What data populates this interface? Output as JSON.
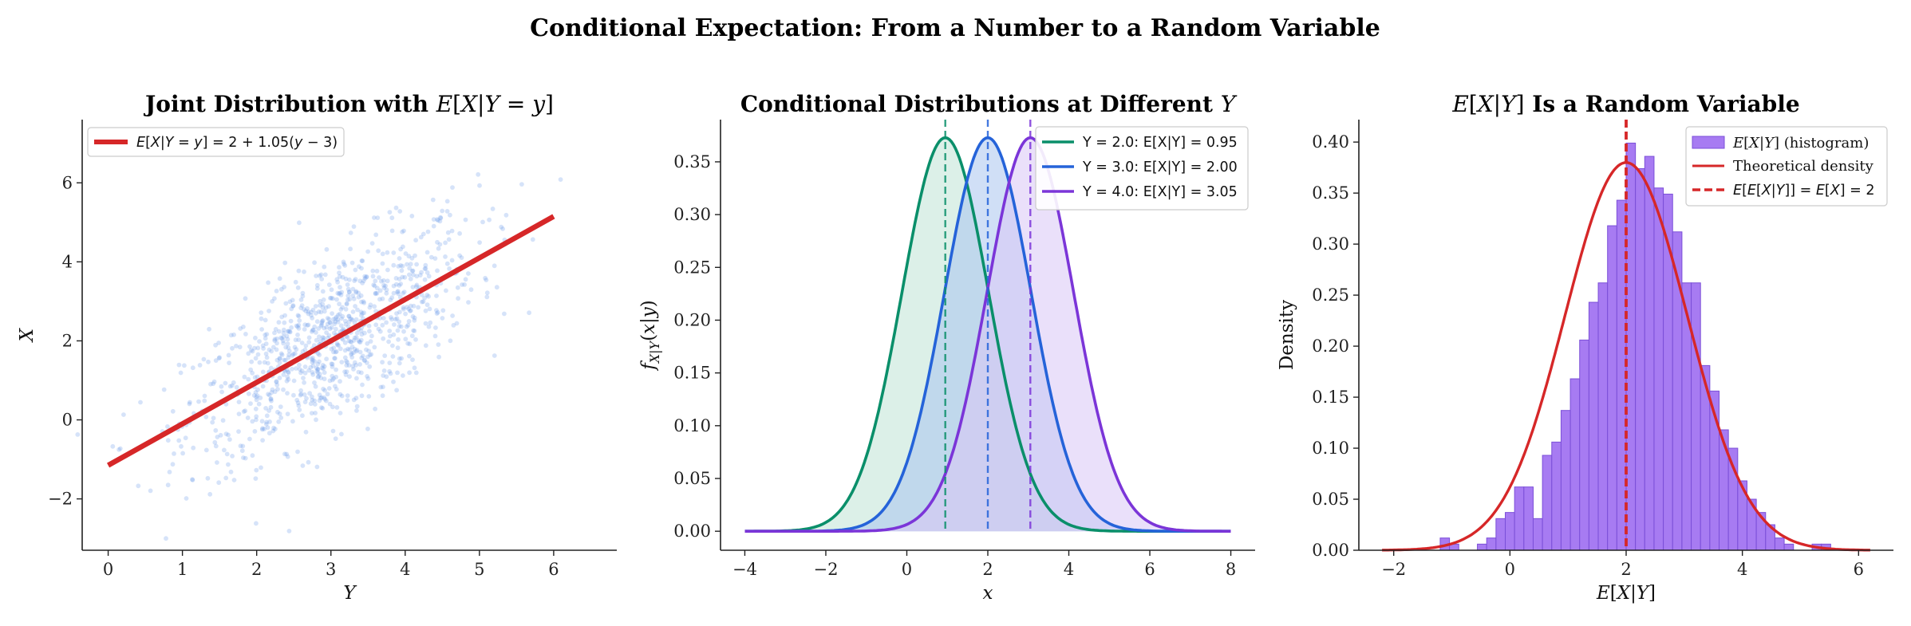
{
  "suptitle": "Conditional Expectation: From a Number to a Random Variable",
  "chart_data": [
    {
      "type": "scatter",
      "title": "Joint Distribution with E[X|Y = y]",
      "xlabel": "Y",
      "ylabel": "X",
      "xlim": [
        -0.35,
        6.85
      ],
      "ylim": [
        -3.3,
        7.6
      ],
      "xticks": [
        0,
        1,
        2,
        3,
        4,
        5,
        6
      ],
      "xtick_labels": [
        "0",
        "1",
        "2",
        "3",
        "4",
        "5",
        "6"
      ],
      "yticks": [
        -2,
        0,
        2,
        4,
        6
      ],
      "ytick_labels": [
        "−2",
        "0",
        "2",
        "4",
        "6"
      ],
      "points_color": "#6d9ae8",
      "line_color": "#d62728",
      "n_points": 1000,
      "regression_line": {
        "label": "E[X|Y = y] = 2 + 1.05(y − 3)",
        "intercept": 2,
        "slope": 1.05,
        "center": 3,
        "x_range": [
          0,
          6
        ]
      },
      "legend_position": "upper left",
      "grid": false
    },
    {
      "type": "area",
      "title": "Conditional Distributions at Different Y",
      "xlabel": "x",
      "ylabel": "f_{X|Y}(x|y)",
      "xlim": [
        -4.6,
        8.6
      ],
      "ylim": [
        -0.018,
        0.39
      ],
      "xticks": [
        -4,
        -2,
        0,
        2,
        4,
        6,
        8
      ],
      "xtick_labels": [
        "−4",
        "−2",
        "0",
        "2",
        "4",
        "6",
        "8"
      ],
      "yticks": [
        0,
        0.05,
        0.1,
        0.15,
        0.2,
        0.25,
        0.3,
        0.35
      ],
      "ytick_labels": [
        "0.00",
        "0.05",
        "0.10",
        "0.15",
        "0.20",
        "0.25",
        "0.30",
        "0.35"
      ],
      "x_range": [
        -4,
        8
      ],
      "sigma": 1.07,
      "series": [
        {
          "name": "Y = 2.0: E[X|Y] = 0.95",
          "mean": 0.95,
          "color": "#0a8f6a",
          "fill": "#bfe3d6"
        },
        {
          "name": "Y = 3.0: E[X|Y] = 2.00",
          "mean": 2.0,
          "color": "#2563d9",
          "fill": "#a9c4ef"
        },
        {
          "name": "Y = 4.0: E[X|Y] = 3.05",
          "mean": 3.05,
          "color": "#7b35d8",
          "fill": "#d9c7f5"
        }
      ],
      "legend_position": "upper right",
      "grid": false
    },
    {
      "type": "bar",
      "title": "E[X|Y] Is a Random Variable",
      "xlabel": "E[X|Y]",
      "ylabel": "Density",
      "xlim": [
        -2.6,
        6.6
      ],
      "ylim": [
        0,
        0.422
      ],
      "xticks": [
        -2,
        0,
        2,
        4,
        6
      ],
      "xtick_labels": [
        "−2",
        "0",
        "2",
        "4",
        "6"
      ],
      "yticks": [
        0,
        0.05,
        0.1,
        0.15,
        0.2,
        0.25,
        0.3,
        0.35,
        0.4
      ],
      "ytick_labels": [
        "0.00",
        "0.05",
        "0.10",
        "0.15",
        "0.20",
        "0.25",
        "0.30",
        "0.35",
        "0.40"
      ],
      "hist_bin_left": -1.2,
      "hist_bin_width": 0.16,
      "hist_values": [
        0.012,
        0.006,
        0,
        0,
        0.006,
        0.012,
        0.031,
        0.037,
        0.062,
        0.062,
        0.031,
        0.093,
        0.106,
        0.137,
        0.168,
        0.206,
        0.243,
        0.262,
        0.318,
        0.343,
        0.399,
        0.374,
        0.386,
        0.355,
        0.349,
        0.312,
        0.262,
        0.262,
        0.181,
        0.156,
        0.118,
        0.1,
        0.068,
        0.05,
        0.037,
        0.025,
        0.012,
        0.006,
        0,
        0,
        0.006,
        0.006
      ],
      "hist_color": "#a77bf2",
      "hist_edge": "#7b4fd8",
      "density": {
        "label": "Theoretical density",
        "mean": 2,
        "sd": 1.05,
        "x_range": [
          -2.2,
          6.2
        ],
        "color": "#d62728"
      },
      "vline": {
        "label": "E[E[X|Y]] = E[X] = 2",
        "x": 2,
        "color": "#d62728"
      },
      "legend": [
        "E[X|Y] (histogram)",
        "Theoretical density",
        "E[E[X|Y]] = E[X] = 2"
      ],
      "legend_position": "upper right",
      "grid": false
    }
  ]
}
